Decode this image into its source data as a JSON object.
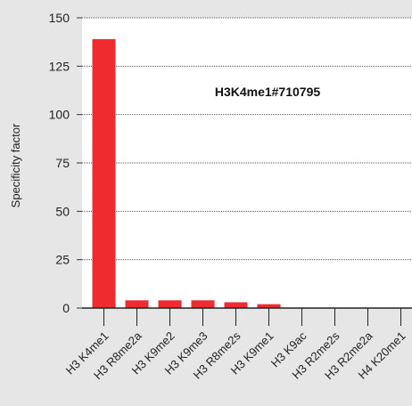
{
  "chart_data": {
    "type": "bar",
    "title": "H3K4me1#710795",
    "ylabel": "Specificity factor",
    "xlabel": "",
    "ylim": [
      0,
      150
    ],
    "yticks": [
      0,
      25,
      50,
      75,
      100,
      125,
      150
    ],
    "grid": "horizontal-dotted",
    "categories": [
      "H3 K4me1",
      "H3 R8me2a",
      "H3 K9me2",
      "H3 K9me3",
      "H3 R8me2s",
      "H3 K9me1",
      "H3 K9ac",
      "H3 R2me2s",
      "H3 R2me2a",
      "H4 K20me1"
    ],
    "values": [
      139,
      4,
      4,
      4,
      3,
      2,
      0,
      0,
      0,
      0
    ],
    "bar_color": "#ee2b2f"
  }
}
